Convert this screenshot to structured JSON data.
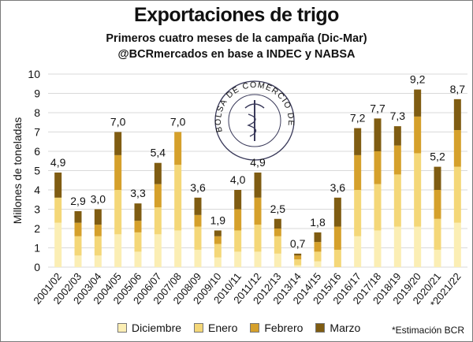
{
  "title": "Exportaciones de trigo",
  "subtitle1": "Primeros cuatro meses de la campaña (Dic-Mar)",
  "subtitle2": "@BCRmercados en base a INDEC y NABSA",
  "footnote": "*Estimación BCR",
  "seal_text": "BOLSA DE COMERCIO DE ROSARIO",
  "colors": {
    "Diciembre": "#fbeeb4",
    "Enero": "#f4d778",
    "Febrero": "#d5a02b",
    "Marzo": "#7f5c12",
    "grid": "#d9d9d9"
  },
  "chart_data": {
    "type": "bar",
    "stacked": true,
    "ylabel": "Millones de toneladas",
    "ylim": [
      0,
      10
    ],
    "yticks": [
      "0",
      "1",
      "2",
      "3",
      "4",
      "5",
      "6",
      "7",
      "8",
      "9",
      "10"
    ],
    "grid": true,
    "legend_position": "bottom",
    "categories": [
      "2001/02",
      "2002/03",
      "2003/04",
      "2004/05",
      "2005/06",
      "2006/07",
      "2007/08",
      "2008/09",
      "2009/10",
      "2010/11",
      "2011/12",
      "2012/13",
      "2013/14",
      "2014/15",
      "2015/16",
      "2016/17",
      "2017/18",
      "2018/19",
      "2019/20",
      "2020/21",
      "*2021/22"
    ],
    "totals_labels": [
      "4,9",
      "2,9",
      "3,0",
      "7,0",
      "3,3",
      "5,4",
      "7,0",
      "3,6",
      "1,9",
      "4,0",
      "4,9",
      "2,5",
      "0,7",
      "1,8",
      "3,6",
      "7,2",
      "7,7",
      "7,3",
      "9,2",
      "5,2",
      "8,7"
    ],
    "series": [
      {
        "name": "Diciembre",
        "values": [
          2.3,
          0.6,
          0.6,
          1.7,
          0.8,
          1.7,
          1.9,
          0.9,
          0.5,
          0.8,
          0.8,
          0.7,
          0.1,
          0.3,
          0.0,
          1.6,
          1.9,
          2.1,
          2.1,
          0.9,
          2.3
        ]
      },
      {
        "name": "Enero",
        "values": [
          1.3,
          1.0,
          1.0,
          2.3,
          1.0,
          1.4,
          3.4,
          1.2,
          0.7,
          1.1,
          1.4,
          0.9,
          0.3,
          0.5,
          0.9,
          2.4,
          2.4,
          2.7,
          3.8,
          1.6,
          2.9
        ]
      },
      {
        "name": "Febrero",
        "values": [
          0.0,
          0.7,
          0.6,
          1.8,
          0.6,
          1.2,
          1.7,
          0.6,
          0.4,
          1.1,
          1.4,
          0.4,
          0.2,
          0.5,
          1.2,
          1.8,
          1.7,
          1.5,
          1.9,
          1.5,
          1.9
        ]
      },
      {
        "name": "Marzo",
        "values": [
          1.3,
          0.6,
          0.8,
          1.2,
          0.9,
          1.1,
          0.0,
          0.9,
          0.3,
          1.0,
          1.3,
          0.5,
          0.1,
          0.5,
          1.5,
          1.4,
          1.7,
          1.0,
          1.4,
          1.2,
          1.6
        ]
      }
    ]
  }
}
